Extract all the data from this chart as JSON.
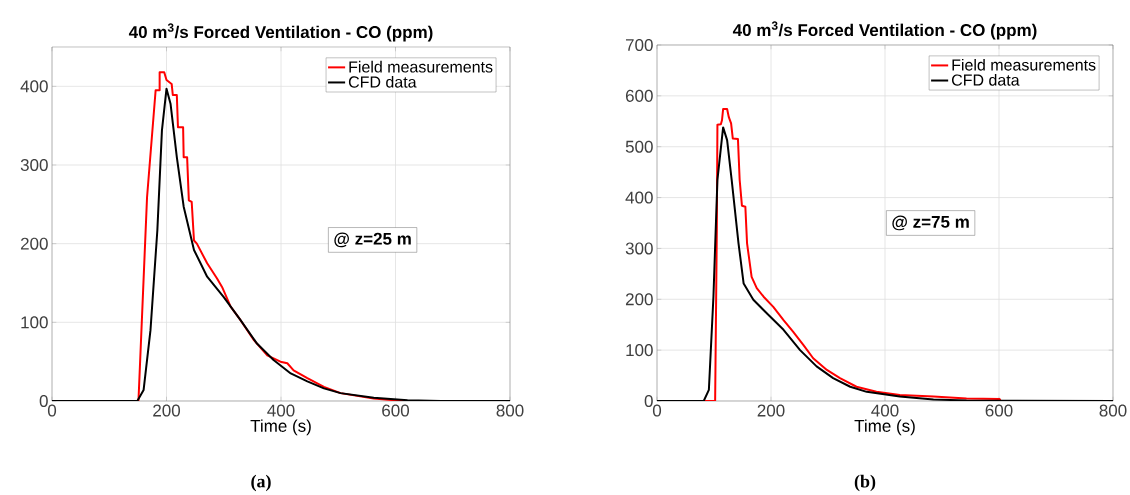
{
  "chart_data": [
    {
      "type": "line",
      "title": "40 m$^{3}$/s Forced Ventilation - CO (ppm)",
      "xlabel": "Time (s)",
      "annotations": [
        "@ z=25 m",
        "(a)"
      ],
      "xlim": [
        0,
        800
      ],
      "xticks": [
        0,
        200,
        400,
        600,
        800
      ],
      "ylim": [
        0,
        450
      ],
      "yticks": [
        0,
        100,
        200,
        300,
        400
      ],
      "grid": true,
      "legend": "top right",
      "series": [
        {
          "name": "Field measurements",
          "color": "#ff0000",
          "x": [
            0,
            151,
            166,
            181,
            188,
            188,
            196,
            200,
            209,
            211,
            218,
            220,
            229,
            230,
            236,
            239,
            244,
            248,
            253,
            271,
            288,
            297,
            312,
            329,
            353,
            376,
            399,
            411,
            422,
            446,
            475,
            504,
            562,
            597,
            621,
            800
          ],
          "values": [
            0,
            0,
            259,
            395,
            395,
            418,
            418,
            408,
            403,
            389,
            389,
            348,
            348,
            310,
            310,
            255,
            253,
            204,
            200,
            175,
            156,
            145,
            120,
            103,
            77,
            58,
            50,
            48,
            39,
            29,
            18,
            10,
            3,
            1,
            0,
            0
          ]
        },
        {
          "name": "CFD data",
          "color": "#000000",
          "x": [
            0,
            149,
            160,
            172,
            184,
            192,
            200,
            207,
            218,
            230,
            248,
            271,
            300,
            329,
            358,
            387,
            417,
            446,
            475,
            504,
            562,
            621,
            679,
            800
          ],
          "values": [
            0,
            0,
            14,
            90,
            217,
            344,
            397,
            378,
            310,
            247,
            192,
            158,
            132,
            103,
            73,
            52,
            35,
            25,
            16,
            10,
            4,
            1,
            0,
            0
          ]
        }
      ]
    },
    {
      "type": "line",
      "title": "40 m$^{3}$/s Forced Ventilation - CO (ppm)",
      "xlabel": "Time (s)",
      "annotations": [
        "@ z=75 m",
        "(b)"
      ],
      "xlim": [
        0,
        800
      ],
      "xticks": [
        0,
        200,
        400,
        600,
        800
      ],
      "ylim": [
        0,
        700
      ],
      "yticks": [
        0,
        100,
        200,
        300,
        400,
        500,
        600,
        700
      ],
      "grid": true,
      "legend": "top right",
      "series": [
        {
          "name": "Field measurements",
          "color": "#ff0000",
          "x": [
            0,
            99,
            102,
            105,
            106,
            112,
            114,
            116,
            123,
            126,
            130,
            133,
            142,
            145,
            149,
            155,
            158,
            166,
            175,
            187,
            204,
            222,
            239,
            257,
            274,
            298,
            321,
            350,
            385,
            426,
            485,
            543,
            601,
            603,
            800
          ],
          "values": [
            0,
            0,
            0,
            343,
            543,
            544,
            552,
            574,
            574,
            558,
            546,
            516,
            515,
            435,
            384,
            382,
            310,
            244,
            222,
            205,
            185,
            159,
            136,
            110,
            84,
            61,
            45,
            28,
            18,
            12,
            9,
            5,
            4,
            0,
            0
          ]
        },
        {
          "name": "CFD data",
          "color": "#000000",
          "x": [
            0,
            82,
            91,
            99,
            106,
            116,
            123,
            131,
            143,
            152,
            169,
            193,
            222,
            251,
            280,
            309,
            339,
            368,
            426,
            485,
            543,
            800
          ],
          "values": [
            0,
            0,
            22,
            205,
            435,
            538,
            513,
            435,
            310,
            231,
            199,
            172,
            140,
            100,
            68,
            45,
            28,
            18,
            9,
            3,
            1,
            0
          ]
        }
      ]
    }
  ]
}
